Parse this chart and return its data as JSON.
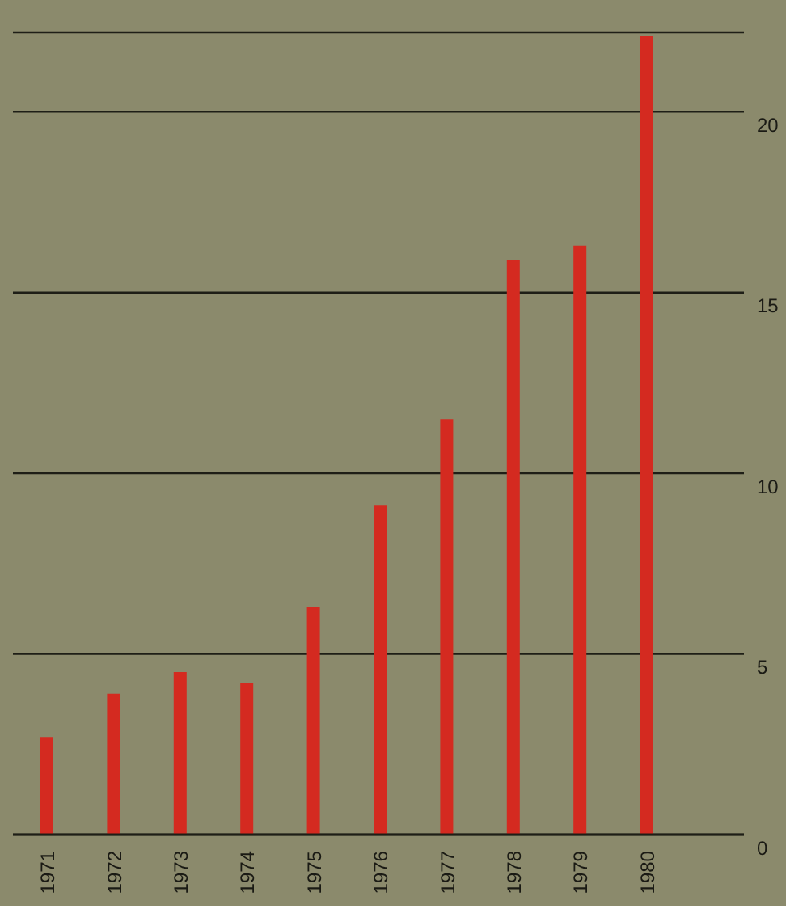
{
  "chart_data": {
    "type": "bar",
    "categories": [
      "1971",
      "1972",
      "1973",
      "1974",
      "1975",
      "1976",
      "1977",
      "1978",
      "1979",
      "1980"
    ],
    "values": [
      2.7,
      3.9,
      4.5,
      4.2,
      6.3,
      9.1,
      11.5,
      15.9,
      16.3,
      22.1
    ],
    "color": "#d42a20",
    "ylim": [
      0,
      22.2
    ],
    "yticks": [
      0,
      5,
      10,
      15,
      20
    ],
    "grid": "y"
  }
}
